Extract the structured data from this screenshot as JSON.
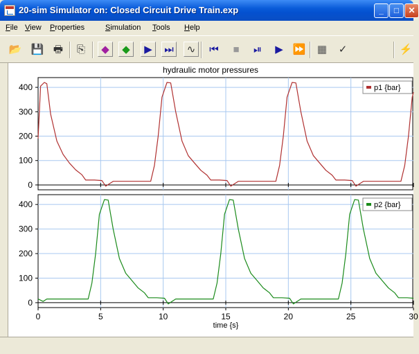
{
  "window": {
    "title": "20-sim Simulator on: Closed Circuit Drive Train.exp"
  },
  "menu": [
    {
      "label": "File",
      "u": "F",
      "rest": "ile"
    },
    {
      "label": "View",
      "u": "V",
      "rest": "iew"
    },
    {
      "label": "Properties",
      "u": "P",
      "rest": "roperties"
    },
    {
      "label": "Simulation",
      "u": "S",
      "rest": "imulation"
    },
    {
      "label": "Tools",
      "u": "T",
      "rest": "ools"
    },
    {
      "label": "Help",
      "u": "H",
      "rest": "elp"
    }
  ],
  "toolbar": [
    {
      "name": "open-folder-icon",
      "glyph": "📂",
      "color": "#d4a017"
    },
    {
      "name": "save-disk-icon",
      "glyph": "💾",
      "color": "#222"
    },
    {
      "name": "print-icon",
      "glyph": "🖶",
      "color": "#333"
    },
    {
      "name": "copy-icon",
      "glyph": "⎘",
      "color": "#333"
    },
    {
      "name": "zoom-fit-icon",
      "glyph": "◆",
      "color": "#a020a0"
    },
    {
      "name": "zoom-icon",
      "glyph": "◆",
      "color": "#1a9a1a"
    },
    {
      "name": "step-forward-icon",
      "glyph": "▶",
      "color": "#1a1aa0"
    },
    {
      "name": "fast-forward-step-icon",
      "glyph": "⏭",
      "color": "#1a1aa0"
    },
    {
      "name": "graph-icon",
      "glyph": "∿",
      "color": "#333"
    },
    {
      "name": "rewind-icon",
      "glyph": "⏮",
      "color": "#1a1aa0"
    },
    {
      "name": "stop-icon",
      "glyph": "■",
      "color": "#999"
    },
    {
      "name": "step-icon",
      "glyph": "⏯",
      "color": "#1a1aa0"
    },
    {
      "name": "run-icon",
      "glyph": "▶",
      "color": "#1a1aa0"
    },
    {
      "name": "run-fast-icon",
      "glyph": "⏩",
      "color": "#1a1aa0"
    },
    {
      "name": "plot-properties-icon",
      "glyph": "▦",
      "color": "#555"
    },
    {
      "name": "check-icon",
      "glyph": "✓",
      "color": "#333"
    },
    {
      "name": "lightning-icon",
      "glyph": "⚡",
      "color": "#d4b000"
    }
  ],
  "chart_data": {
    "type": "line",
    "title": "hydraulic motor pressures",
    "xlabel": "time {s}",
    "xlim": [
      0,
      30
    ],
    "xticks": [
      0,
      5,
      10,
      15,
      20,
      25,
      30
    ],
    "subplots": [
      {
        "ylim": [
          -20,
          440
        ],
        "yticks": [
          0,
          100,
          200,
          300,
          400
        ],
        "series": [
          {
            "name": "p1 {bar}",
            "color": "#b03030",
            "x": [
              0,
              0.2,
              0.5,
              0.7,
              1,
              1.5,
              2,
              2.5,
              3,
              3.5,
              3.8,
              4.5,
              5.1,
              5.4,
              5.7,
              6,
              9,
              9.3,
              9.6,
              9.9,
              10.3,
              10.6,
              11,
              11.5,
              12,
              12.5,
              13,
              13.5,
              13.8,
              14.5,
              15.1,
              15.4,
              15.7,
              16,
              19,
              19.3,
              19.6,
              19.9,
              20.3,
              20.6,
              21,
              21.5,
              22,
              22.5,
              23,
              23.5,
              23.8,
              24.5,
              25.1,
              25.4,
              25.7,
              26,
              29,
              29.3,
              29.6,
              29.9,
              30
            ],
            "y": [
              190,
              405,
              420,
              415,
              290,
              180,
              125,
              90,
              62,
              42,
              20,
              20,
              18,
              -5,
              5,
              15,
              15,
              80,
              200,
              360,
              420,
              418,
              300,
              180,
              120,
              90,
              60,
              40,
              20,
              20,
              18,
              -5,
              5,
              15,
              15,
              80,
              200,
              360,
              420,
              418,
              300,
              180,
              120,
              90,
              60,
              40,
              20,
              20,
              18,
              -5,
              5,
              15,
              15,
              80,
              200,
              360,
              380
            ]
          }
        ]
      },
      {
        "ylim": [
          -20,
          440
        ],
        "yticks": [
          0,
          100,
          200,
          300,
          400
        ],
        "series": [
          {
            "name": "p2 {bar}",
            "color": "#1a8a1a",
            "x": [
              0,
              0.4,
              0.7,
              1,
              4,
              4.3,
              4.6,
              4.9,
              5.3,
              5.6,
              6,
              6.5,
              7,
              7.5,
              8,
              8.5,
              8.8,
              9.5,
              10.1,
              10.4,
              10.7,
              11,
              14,
              14.3,
              14.6,
              14.9,
              15.3,
              15.6,
              16,
              16.5,
              17,
              17.5,
              18,
              18.5,
              18.8,
              19.5,
              20.1,
              20.4,
              20.7,
              21,
              24,
              24.3,
              24.6,
              24.9,
              25.3,
              25.6,
              26,
              26.5,
              27,
              27.5,
              28,
              28.5,
              28.8,
              29.5,
              30
            ],
            "y": [
              15,
              5,
              15,
              15,
              15,
              80,
              200,
              360,
              420,
              418,
              300,
              180,
              120,
              90,
              60,
              40,
              20,
              20,
              18,
              -5,
              5,
              15,
              15,
              80,
              200,
              360,
              420,
              418,
              300,
              180,
              120,
              90,
              60,
              40,
              20,
              20,
              18,
              -5,
              5,
              15,
              15,
              80,
              200,
              360,
              420,
              418,
              300,
              180,
              120,
              90,
              60,
              40,
              20,
              20,
              18
            ]
          }
        ]
      }
    ]
  }
}
